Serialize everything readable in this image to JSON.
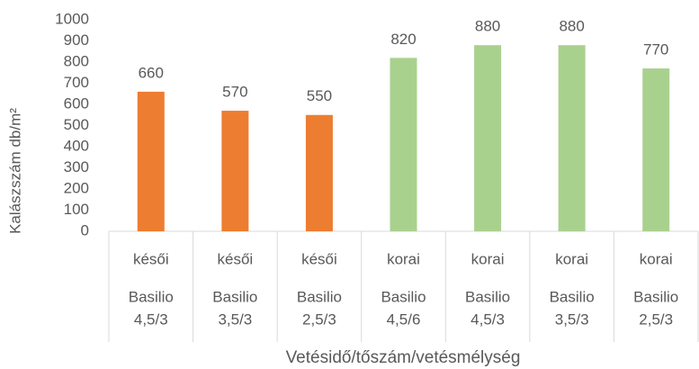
{
  "chart_data": {
    "type": "bar",
    "y_label": "Kalászszám db/m²",
    "x_label": "Vetésidő/tőszám/vetésmélység",
    "categories": [
      [
        "késői",
        "Basilio",
        "4,5/3"
      ],
      [
        "késői",
        "Basilio",
        "3,5/3"
      ],
      [
        "késői",
        "Basilio",
        "2,5/3"
      ],
      [
        "korai",
        "Basilio",
        "4,5/6"
      ],
      [
        "korai",
        "Basilio",
        "4,5/3"
      ],
      [
        "korai",
        "Basilio",
        "3,5/3"
      ],
      [
        "korai",
        "Basilio",
        "2,5/3"
      ]
    ],
    "values": [
      660,
      570,
      550,
      820,
      880,
      880,
      770
    ],
    "colors": [
      "#ed7d31",
      "#ed7d31",
      "#ed7d31",
      "#a9d18e",
      "#a9d18e",
      "#a9d18e",
      "#a9d18e"
    ],
    "ylim": [
      0,
      1000
    ],
    "yticks": [
      0,
      100,
      200,
      300,
      400,
      500,
      600,
      700,
      800,
      900,
      1000
    ],
    "grid": false
  }
}
